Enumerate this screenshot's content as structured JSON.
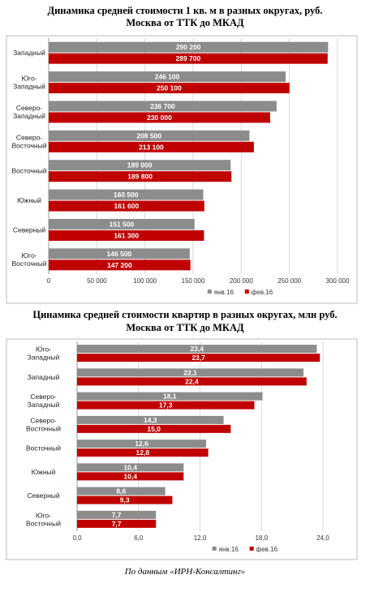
{
  "chart_data": [
    {
      "type": "bar",
      "orientation": "horizontal",
      "title": "Динамика средней стоимости 1 кв. м в разных округах, руб.",
      "subtitle": "Москва от ТТК до МКАД",
      "categories": [
        "Западный",
        "Юго-Западный",
        "Северо-Западный",
        "Северо-Восточный",
        "Восточный",
        "Южный",
        "Северный",
        "Юго-Восточный"
      ],
      "series": [
        {
          "name": "янв.16",
          "color": "#8c8c8c",
          "values": [
            290200,
            246100,
            236700,
            208500,
            189000,
            160500,
            151500,
            146500
          ],
          "value_labels": [
            "290 200",
            "246 100",
            "236 700",
            "208 500",
            "189 000",
            "160 500",
            "151 500",
            "146 500"
          ]
        },
        {
          "name": "фев.16",
          "color": "#c00000",
          "values": [
            289700,
            250100,
            230000,
            213100,
            189800,
            161600,
            161300,
            147200
          ],
          "value_labels": [
            "289 700",
            "250 100",
            "230 000",
            "213 100",
            "189 800",
            "161 600",
            "161 300",
            "147 200"
          ]
        }
      ],
      "xlim": [
        0,
        300000
      ],
      "xticks": [
        0,
        {
          "value": 50000,
          "label": "50 000"
        },
        {
          "value": 100000,
          "label": "100 000"
        },
        {
          "value": 150000,
          "label": "150 000"
        },
        {
          "value": 200000,
          "label": "200 000"
        },
        {
          "value": 250000,
          "label": "250 000"
        },
        {
          "value": 300000,
          "label": "300 000"
        }
      ],
      "grid": true,
      "legend": "bottom"
    },
    {
      "type": "bar",
      "orientation": "horizontal",
      "title": "Цинамика средней стоимости квартир в разных округах, млн руб.",
      "subtitle": "Москва от ТТК до МКАД",
      "categories": [
        "Юго-Западный",
        "Западный",
        "Северо-Западный",
        "Северо-Восточный",
        "Восточный",
        "Южный",
        "Северный",
        "Юго-Восточный"
      ],
      "series": [
        {
          "name": "янв.16",
          "color": "#8c8c8c",
          "values": [
            23.4,
            22.1,
            18.1,
            14.3,
            12.6,
            10.4,
            8.6,
            7.7
          ],
          "value_labels": [
            "23,4",
            "22,1",
            "18,1",
            "14,3",
            "12,6",
            "10,4",
            "8,6",
            "7,7"
          ]
        },
        {
          "name": "фев.16",
          "color": "#c00000",
          "values": [
            23.7,
            22.4,
            17.3,
            15.0,
            12.8,
            10.4,
            9.3,
            7.7
          ],
          "value_labels": [
            "23,7",
            "22,4",
            "17,3",
            "15,0",
            "12,8",
            "10,4",
            "9,3",
            "7,7"
          ]
        }
      ],
      "xlim": [
        0,
        24
      ],
      "xticks": [
        {
          "value": 0,
          "label": "0,0"
        },
        {
          "value": 6,
          "label": "6,0"
        },
        {
          "value": 12,
          "label": "12,0"
        },
        {
          "value": 18,
          "label": "18,0"
        },
        {
          "value": 24,
          "label": "24,0"
        }
      ],
      "grid": true,
      "legend": "bottom"
    }
  ],
  "caption": "По данным «ИРН-Консалтинг»"
}
